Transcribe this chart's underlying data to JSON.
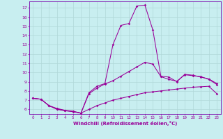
{
  "xlabel": "Windchill (Refroidissement éolien,°C)",
  "xlim": [
    -0.5,
    23.5
  ],
  "ylim": [
    5.5,
    17.7
  ],
  "yticks": [
    6,
    7,
    8,
    9,
    10,
    11,
    12,
    13,
    14,
    15,
    16,
    17
  ],
  "xticks": [
    0,
    1,
    2,
    3,
    4,
    5,
    6,
    7,
    8,
    9,
    10,
    11,
    12,
    13,
    14,
    15,
    16,
    17,
    18,
    19,
    20,
    21,
    22,
    23
  ],
  "bg_color": "#c8eef0",
  "grid_color": "#b0d8d8",
  "line_color": "#990099",
  "spine_color": "#7700aa",
  "line1_x": [
    0,
    1,
    2,
    3,
    4,
    5,
    6,
    7,
    8,
    9,
    10,
    11,
    12,
    13,
    14,
    15,
    16,
    17,
    18,
    19,
    20,
    21,
    22,
    23
  ],
  "line1_y": [
    7.2,
    7.1,
    6.4,
    6.1,
    5.9,
    5.8,
    5.6,
    6.0,
    6.4,
    6.7,
    7.0,
    7.2,
    7.4,
    7.6,
    7.8,
    7.9,
    8.0,
    8.1,
    8.2,
    8.3,
    8.4,
    8.45,
    8.5,
    7.7
  ],
  "line2_x": [
    0,
    1,
    2,
    3,
    4,
    5,
    6,
    7,
    8,
    9,
    10,
    11,
    12,
    13,
    14,
    15,
    16,
    17,
    18,
    19,
    20,
    21,
    22,
    23
  ],
  "line2_y": [
    7.2,
    7.1,
    6.4,
    6.0,
    5.85,
    5.75,
    5.6,
    7.8,
    8.5,
    8.8,
    13.0,
    15.1,
    15.3,
    17.2,
    17.3,
    14.6,
    9.6,
    9.5,
    9.0,
    9.8,
    9.7,
    9.5,
    9.3,
    8.8
  ],
  "line3_x": [
    0,
    1,
    2,
    3,
    4,
    5,
    6,
    7,
    8,
    9,
    10,
    11,
    12,
    13,
    14,
    15,
    16,
    17,
    18,
    19,
    20,
    21,
    22,
    23
  ],
  "line3_y": [
    7.2,
    7.1,
    6.4,
    6.05,
    5.87,
    5.77,
    5.58,
    7.7,
    8.3,
    8.75,
    9.1,
    9.6,
    10.1,
    10.6,
    11.1,
    10.9,
    9.55,
    9.25,
    9.05,
    9.75,
    9.65,
    9.55,
    9.25,
    8.7
  ]
}
